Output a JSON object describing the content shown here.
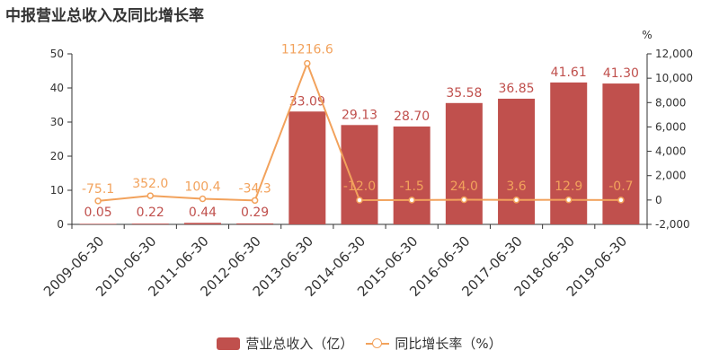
{
  "chart_title": "中报营业总收入及同比增长率",
  "chart_data": {
    "type": "bar",
    "categories": [
      "2009-06-30",
      "2010-06-30",
      "2011-06-30",
      "2012-06-30",
      "2013-06-30",
      "2014-06-30",
      "2015-06-30",
      "2016-06-30",
      "2017-06-30",
      "2018-06-30",
      "2019-06-30"
    ],
    "series": [
      {
        "name": "营业总收入（亿）",
        "type": "bar",
        "axis": "left",
        "values": [
          0.05,
          0.22,
          0.44,
          0.29,
          33.09,
          29.13,
          28.7,
          35.58,
          36.85,
          41.61,
          41.3
        ],
        "labels": [
          "0.05",
          "0.22",
          "0.44",
          "0.29",
          "33.09",
          "29.13",
          "28.70",
          "35.58",
          "36.85",
          "41.61",
          "41.30"
        ],
        "color": "#c0504d"
      },
      {
        "name": "同比增长率（%）",
        "type": "line",
        "axis": "right",
        "values": [
          -75.1,
          352.0,
          100.4,
          -34.3,
          11216.6,
          -12.0,
          -1.5,
          24.0,
          3.6,
          12.9,
          -0.7
        ],
        "labels": [
          "-75.1",
          "352.0",
          "100.4",
          "-34.3",
          "11216.6",
          "-12.0",
          "-1.5",
          "24.0",
          "3.6",
          "12.9",
          "-0.7"
        ],
        "color": "#f2a25c"
      }
    ],
    "left_axis": {
      "min": 0,
      "max": 50,
      "ticks": [
        0,
        10,
        20,
        30,
        40,
        50
      ],
      "tick_labels": [
        "0",
        "10",
        "20",
        "30",
        "40",
        "50"
      ]
    },
    "right_axis": {
      "unit": "%",
      "min": -2000,
      "max": 12000,
      "ticks": [
        -2000,
        0,
        2000,
        4000,
        6000,
        8000,
        10000,
        12000
      ],
      "tick_labels": [
        "-2,000",
        "0",
        "2,000",
        "4,000",
        "6,000",
        "8,000",
        "10,000",
        "12,000"
      ]
    },
    "grid": false,
    "legend_position": "bottom"
  },
  "legend": {
    "items": [
      {
        "label": "营业总收入（亿）",
        "color": "#c0504d",
        "kind": "bar"
      },
      {
        "label": "同比增长率（%）",
        "color": "#f2a25c",
        "kind": "line"
      }
    ]
  }
}
